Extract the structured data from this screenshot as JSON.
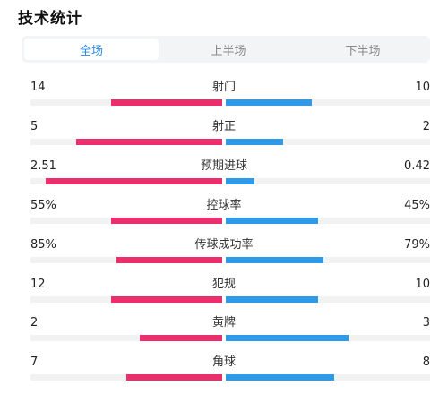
{
  "header": {
    "title": "技术统计"
  },
  "tabs": [
    {
      "label": "全场",
      "active": true
    },
    {
      "label": "上半场",
      "active": false
    },
    {
      "label": "下半场",
      "active": false
    }
  ],
  "colors": {
    "home": "#ec2f6c",
    "away": "#2f9ae8",
    "accent": "#2b8ce6"
  },
  "stats": [
    {
      "label": "射门",
      "home": "14",
      "away": "10",
      "home_share": 0.58,
      "away_share": 0.42
    },
    {
      "label": "射正",
      "home": "5",
      "away": "2",
      "home_share": 0.76,
      "away_share": 0.28
    },
    {
      "label": "预期进球",
      "home": "2.51",
      "away": "0.42",
      "home_share": 0.92,
      "away_share": 0.14
    },
    {
      "label": "控球率",
      "home": "55%",
      "away": "45%",
      "home_share": 0.58,
      "away_share": 0.45
    },
    {
      "label": "传球成功率",
      "home": "85%",
      "away": "79%",
      "home_share": 0.55,
      "away_share": 0.48
    },
    {
      "label": "犯规",
      "home": "12",
      "away": "10",
      "home_share": 0.58,
      "away_share": 0.45
    },
    {
      "label": "黄牌",
      "home": "2",
      "away": "3",
      "home_share": 0.43,
      "away_share": 0.6
    },
    {
      "label": "角球",
      "home": "7",
      "away": "8",
      "home_share": 0.5,
      "away_share": 0.53
    }
  ]
}
